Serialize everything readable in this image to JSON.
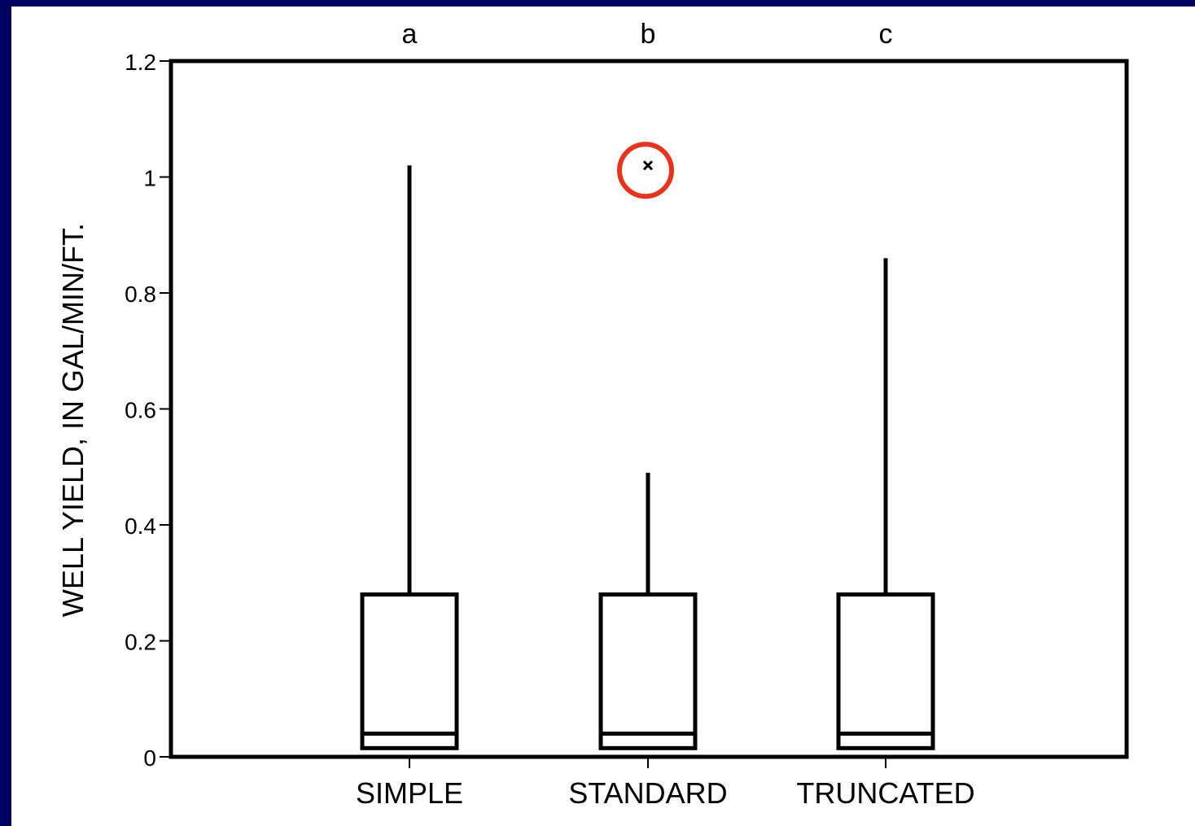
{
  "colors": {
    "background": "#00005e",
    "plot": "#ffffff",
    "ink": "#000000",
    "highlight": "#e8341c"
  },
  "chart_data": {
    "type": "box",
    "ylabel": "WELL YIELD, IN GAL/MIN/FT.",
    "ylim": [
      0,
      1.2
    ],
    "yticks": [
      0,
      0.2,
      0.4,
      0.6,
      0.8,
      1.0,
      1.2
    ],
    "ytick_labels": [
      "0",
      "0.2",
      "0.4",
      "0.6",
      "0.8",
      "1",
      "1.2"
    ],
    "grid": false,
    "categories": [
      "SIMPLE",
      "STANDARD",
      "TRUNCATED"
    ],
    "panel_labels": [
      "a",
      "b",
      "c"
    ],
    "boxes": [
      {
        "category": "SIMPLE",
        "whisker_low": 0.015,
        "q1": 0.015,
        "median": 0.04,
        "q3": 0.28,
        "whisker_high": 1.02,
        "outliers": []
      },
      {
        "category": "STANDARD",
        "whisker_low": 0.015,
        "q1": 0.015,
        "median": 0.04,
        "q3": 0.28,
        "whisker_high": 0.49,
        "outliers": [
          1.02
        ]
      },
      {
        "category": "TRUNCATED",
        "whisker_low": 0.015,
        "q1": 0.015,
        "median": 0.04,
        "q3": 0.28,
        "whisker_high": 0.86,
        "outliers": []
      }
    ],
    "annotations": [
      {
        "type": "circle-highlight",
        "target": "STANDARD outlier",
        "value": 1.02,
        "color": "#e8341c"
      }
    ]
  }
}
